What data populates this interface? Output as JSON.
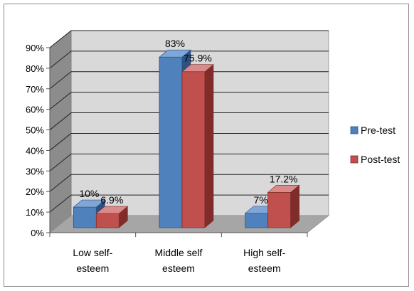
{
  "chart_data": {
    "type": "bar",
    "style": "3d-clustered-column",
    "categories": [
      [
        "Low self-",
        "esteem"
      ],
      [
        "Middle self",
        "esteem"
      ],
      [
        "High self-",
        "esteem"
      ]
    ],
    "series": [
      {
        "name": "Pre-test",
        "values": [
          10,
          83,
          7
        ],
        "labels": [
          "10%",
          "83%",
          "7%"
        ],
        "color": "#4f81bd",
        "dark": "#2c5283",
        "top": "#7fa6d6"
      },
      {
        "name": "Post-test",
        "values": [
          6.9,
          75.9,
          17.2
        ],
        "labels": [
          "6.9%",
          "75.9%",
          "17.2%"
        ],
        "color": "#c0504d",
        "dark": "#7f2c2a",
        "top": "#d98b89"
      }
    ],
    "yticks": [
      "0%",
      "10%",
      "20%",
      "30%",
      "40%",
      "50%",
      "60%",
      "70%",
      "80%",
      "90%"
    ],
    "ylim": [
      0,
      90
    ],
    "grid": true,
    "legend": "right",
    "wall_color": "#d9d9d9",
    "floor_color": "#a6a6a6"
  }
}
